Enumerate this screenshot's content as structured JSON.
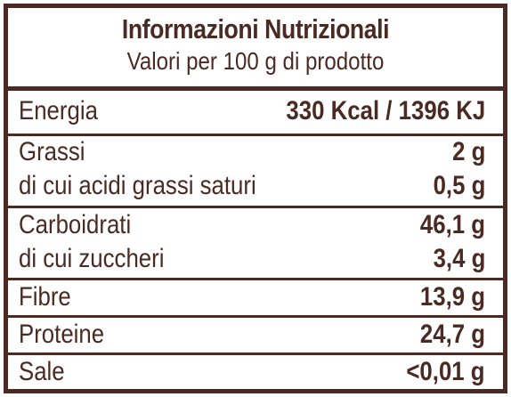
{
  "header": {
    "title": "Informazioni Nutrizionali",
    "subtitle": "Valori per 100 g di prodotto"
  },
  "rows": {
    "energia": {
      "label": "Energia",
      "value": "330 Kcal / 1396 KJ"
    },
    "grassi": {
      "label": "Grassi",
      "value": "2 g"
    },
    "saturi": {
      "label": "di cui acidi grassi saturi",
      "value": "0,5 g"
    },
    "carboidrati": {
      "label": "Carboidrati",
      "value": "46,1 g"
    },
    "zuccheri": {
      "label": "di cui zuccheri",
      "value": "3,4 g"
    },
    "fibre": {
      "label": "Fibre",
      "value": "13,9 g"
    },
    "proteine": {
      "label": "Proteine",
      "value": "24,7 g"
    },
    "sale": {
      "label": "Sale",
      "value": "<0,01 g"
    }
  },
  "colors": {
    "ink": "#4a2a22",
    "background": "#ffffff"
  }
}
